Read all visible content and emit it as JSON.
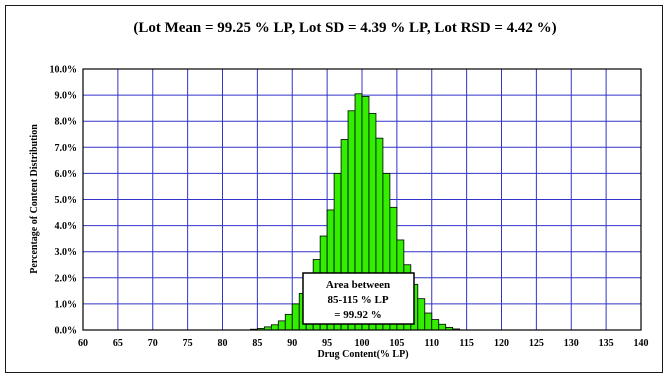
{
  "chart_data": {
    "type": "bar",
    "title": "(Lot Mean = 99.25 % LP, Lot SD = 4.39 % LP, Lot RSD = 4.42 %)",
    "xlabel": "Drug Content(% LP)",
    "ylabel": "Percentage of Content Distribution",
    "xlim": [
      60,
      140
    ],
    "ylim": [
      0,
      10
    ],
    "x_ticks": [
      "60",
      "65",
      "70",
      "75",
      "80",
      "85",
      "90",
      "95",
      "100",
      "105",
      "110",
      "115",
      "120",
      "125",
      "130",
      "135",
      "140"
    ],
    "y_ticks": [
      "0.0%",
      "1.0%",
      "2.0%",
      "3.0%",
      "4.0%",
      "5.0%",
      "6.0%",
      "7.0%",
      "8.0%",
      "9.0%",
      "10.0%"
    ],
    "grid": true,
    "bar_color": "#33ee00",
    "grid_color": "#3333cc",
    "series": [
      {
        "x": [
          84.5,
          85.5,
          86.5,
          87.5,
          88.5,
          89.5,
          90.5,
          91.5,
          92.5,
          93.5,
          94.5,
          95.5,
          96.5,
          97.5,
          98.5,
          99.5,
          100.5,
          101.5,
          102.5,
          103.5,
          104.5,
          105.5,
          106.5,
          107.5,
          108.5,
          109.5,
          110.5,
          111.5,
          112.5,
          113.5
        ],
        "values": [
          0.03,
          0.06,
          0.12,
          0.2,
          0.35,
          0.6,
          1.0,
          1.4,
          2.05,
          2.7,
          3.6,
          4.6,
          6.0,
          7.3,
          8.4,
          9.05,
          8.95,
          8.3,
          7.35,
          6.0,
          4.7,
          3.45,
          2.5,
          1.75,
          1.2,
          0.65,
          0.4,
          0.22,
          0.1,
          0.04
        ]
      }
    ],
    "annotation": [
      "Area between",
      "85-115 % LP",
      "= 99.92 %"
    ]
  }
}
